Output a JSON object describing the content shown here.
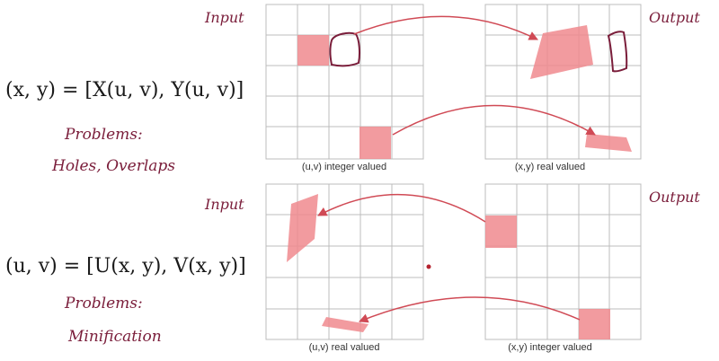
{
  "top": {
    "equation": "(x, y) = [X(u, v), Y(u, v)]",
    "problems_label": "Problems:",
    "problems_text": "Holes, Overlaps",
    "left_annotation": "Input",
    "right_annotation": "Output",
    "left_caption": "(u,v) integer valued",
    "right_caption": "(x,y) real valued"
  },
  "bottom": {
    "equation": "(u, v) = [U(x, y), V(x, y)]",
    "problems_label": "Problems:",
    "problems_text": "Minification",
    "left_annotation": "Input",
    "right_annotation": "Output",
    "left_caption": "(u,v) real valued",
    "right_caption": "(x,y) integer valued"
  },
  "colors": {
    "ink": "#7a1d3a",
    "arrow": "#d04a55",
    "fill": "#f08a8e",
    "grid": "#bcbcbc"
  }
}
